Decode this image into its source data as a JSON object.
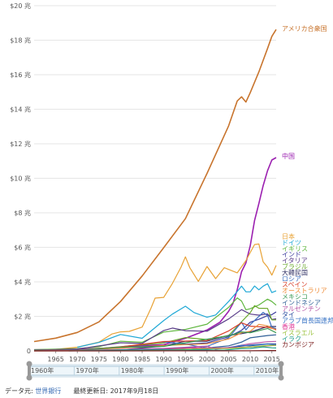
{
  "chart_data": {
    "type": "line",
    "title": "",
    "xlabel": "",
    "ylabel": "",
    "xlim": [
      1960,
      2016
    ],
    "ylim": [
      0,
      20
    ],
    "y_tick_values": [
      0,
      2,
      4,
      6,
      8,
      10,
      12,
      14,
      16,
      18,
      20
    ],
    "y_tick_labels": [
      "0",
      "$2 兆",
      "$4 兆",
      "$6 兆",
      "$8 兆",
      "$10 兆",
      "$12 兆",
      "$14 兆",
      "$16 兆",
      "$18 兆",
      "$20 兆"
    ],
    "x_tick_values": [
      1965,
      1970,
      1975,
      1980,
      1985,
      1990,
      1995,
      2000,
      2005,
      2010,
      2015
    ],
    "x_tick_labels": [
      "1965",
      "1970",
      "1975",
      "1980",
      "1985",
      "1990",
      "1995",
      "2000",
      "2005",
      "2010",
      "2015"
    ],
    "grid": true,
    "series": [
      {
        "name": "アメリカ合衆国",
        "color": "#c8742d",
        "x": [
          1960,
          1965,
          1970,
          1975,
          1980,
          1985,
          1990,
          1995,
          2000,
          2005,
          2007,
          2008,
          2009,
          2010,
          2012,
          2014,
          2015,
          2016
        ],
        "y": [
          0.54,
          0.74,
          1.07,
          1.68,
          2.86,
          4.34,
          5.98,
          7.66,
          10.28,
          13.04,
          14.48,
          14.72,
          14.42,
          14.96,
          16.16,
          17.52,
          18.22,
          18.62
        ]
      },
      {
        "name": "中国",
        "color": "#9b1fb0",
        "x": [
          1960,
          1970,
          1980,
          1985,
          1990,
          1995,
          2000,
          2003,
          2005,
          2006,
          2007,
          2008,
          2009,
          2010,
          2011,
          2012,
          2013,
          2014,
          2015,
          2016
        ],
        "y": [
          0.06,
          0.09,
          0.19,
          0.31,
          0.36,
          0.73,
          1.21,
          1.66,
          2.29,
          2.75,
          3.55,
          4.59,
          5.1,
          6.09,
          7.55,
          8.53,
          9.57,
          10.44,
          11.06,
          11.2
        ]
      },
      {
        "name": "日本",
        "color": "#e8a235",
        "x": [
          1960,
          1965,
          1970,
          1975,
          1978,
          1980,
          1982,
          1985,
          1987,
          1988,
          1990,
          1992,
          1994,
          1995,
          1996,
          1998,
          2000,
          2002,
          2004,
          2007,
          2009,
          2010,
          2011,
          2012,
          2013,
          2014,
          2015,
          2016
        ],
        "y": [
          0.04,
          0.09,
          0.21,
          0.51,
          0.98,
          1.1,
          1.13,
          1.38,
          2.45,
          3.06,
          3.1,
          3.91,
          4.85,
          5.45,
          4.83,
          4.03,
          4.89,
          4.19,
          4.82,
          4.52,
          5.23,
          5.7,
          6.16,
          6.2,
          5.16,
          4.85,
          4.39,
          4.95
        ]
      },
      {
        "name": "ドイツ",
        "color": "#1fa8d6",
        "x": [
          1970,
          1975,
          1980,
          1985,
          1990,
          1992,
          1995,
          1997,
          2000,
          2002,
          2005,
          2007,
          2008,
          2009,
          2010,
          2011,
          2012,
          2013,
          2014,
          2015,
          2016
        ],
        "y": [
          0.21,
          0.49,
          0.95,
          0.73,
          1.76,
          2.13,
          2.59,
          2.22,
          1.95,
          2.08,
          2.86,
          3.44,
          3.75,
          3.42,
          3.42,
          3.76,
          3.54,
          3.75,
          3.89,
          3.38,
          3.48
        ]
      },
      {
        "name": "イギリス",
        "color": "#5fb63e",
        "x": [
          1960,
          1970,
          1975,
          1980,
          1985,
          1990,
          1995,
          2000,
          2005,
          2007,
          2008,
          2009,
          2010,
          2012,
          2014,
          2015,
          2016
        ],
        "y": [
          0.07,
          0.13,
          0.24,
          0.56,
          0.5,
          1.09,
          1.24,
          1.55,
          2.52,
          3.07,
          2.89,
          2.38,
          2.44,
          2.66,
          3.0,
          2.86,
          2.65
        ]
      },
      {
        "name": "インド",
        "color": "#3a3a9c",
        "x": [
          1960,
          1970,
          1980,
          1990,
          2000,
          2005,
          2008,
          2010,
          2012,
          2014,
          2015,
          2016
        ],
        "y": [
          0.04,
          0.06,
          0.19,
          0.32,
          0.46,
          0.82,
          1.19,
          1.66,
          1.83,
          2.04,
          2.1,
          2.26
        ]
      },
      {
        "name": "イタリア",
        "color": "#5a3d8a",
        "x": [
          1960,
          1970,
          1980,
          1985,
          1990,
          1992,
          1995,
          2000,
          2005,
          2008,
          2010,
          2012,
          2014,
          2015,
          2016
        ],
        "y": [
          0.04,
          0.11,
          0.47,
          0.43,
          1.18,
          1.32,
          1.17,
          1.14,
          1.85,
          2.39,
          2.13,
          2.07,
          2.14,
          1.82,
          1.86
        ]
      },
      {
        "name": "ブラジル",
        "color": "#6aa82a",
        "x": [
          1960,
          1970,
          1980,
          1990,
          1995,
          2000,
          2005,
          2008,
          2010,
          2011,
          2012,
          2014,
          2015,
          2016
        ],
        "y": [
          0.02,
          0.04,
          0.24,
          0.46,
          0.77,
          0.66,
          0.89,
          1.69,
          2.21,
          2.62,
          2.47,
          2.46,
          1.8,
          1.8
        ]
      },
      {
        "name": "大韓民国",
        "color": "#333366",
        "x": [
          1960,
          1970,
          1980,
          1990,
          1995,
          2000,
          2005,
          2008,
          2010,
          2014,
          2016
        ],
        "y": [
          0.01,
          0.01,
          0.06,
          0.28,
          0.56,
          0.56,
          0.9,
          1.0,
          1.09,
          1.41,
          1.41
        ]
      },
      {
        "name": "ロシア",
        "color": "#3e6fbf",
        "x": [
          1989,
          1990,
          1995,
          1999,
          2000,
          2005,
          2008,
          2009,
          2010,
          2013,
          2014,
          2015,
          2016
        ],
        "y": [
          0.51,
          0.52,
          0.4,
          0.2,
          0.26,
          0.76,
          1.66,
          1.22,
          1.52,
          2.23,
          2.06,
          1.37,
          1.28
        ]
      },
      {
        "name": "スペイン",
        "color": "#d93f2a",
        "x": [
          1960,
          1970,
          1980,
          1990,
          2000,
          2005,
          2008,
          2010,
          2014,
          2016
        ],
        "y": [
          0.01,
          0.04,
          0.23,
          0.54,
          0.6,
          1.16,
          1.63,
          1.43,
          1.37,
          1.24
        ]
      },
      {
        "name": "オーストラリア",
        "color": "#ef8f3c",
        "x": [
          1960,
          1970,
          1980,
          1990,
          2000,
          2005,
          2008,
          2010,
          2012,
          2014,
          2016
        ],
        "y": [
          0.02,
          0.04,
          0.16,
          0.31,
          0.41,
          0.69,
          1.05,
          1.14,
          1.54,
          1.45,
          1.2
        ]
      },
      {
        "name": "メキシコ",
        "color": "#3a9a55",
        "x": [
          1960,
          1970,
          1980,
          1990,
          2000,
          2005,
          2008,
          2010,
          2014,
          2016
        ],
        "y": [
          0.01,
          0.04,
          0.21,
          0.26,
          0.68,
          0.87,
          1.1,
          1.05,
          1.3,
          1.05
        ]
      },
      {
        "name": "インドネシア",
        "color": "#2e5e96",
        "x": [
          1967,
          1970,
          1980,
          1990,
          1997,
          1998,
          2000,
          2005,
          2008,
          2010,
          2014,
          2016
        ],
        "y": [
          0.01,
          0.01,
          0.07,
          0.11,
          0.22,
          0.1,
          0.17,
          0.29,
          0.51,
          0.76,
          0.89,
          0.93
        ]
      },
      {
        "name": "アルゼンチン",
        "color": "#b85aa8",
        "x": [
          1962,
          1970,
          1980,
          1990,
          2000,
          2002,
          2005,
          2010,
          2014,
          2016
        ],
        "y": [
          0.02,
          0.03,
          0.08,
          0.14,
          0.28,
          0.1,
          0.2,
          0.42,
          0.53,
          0.55
        ]
      },
      {
        "name": "タイ",
        "color": "#2d4fa0",
        "x": [
          1960,
          1970,
          1980,
          1990,
          1996,
          1998,
          2000,
          2005,
          2010,
          2014,
          2016
        ],
        "y": [
          0.003,
          0.007,
          0.03,
          0.09,
          0.18,
          0.11,
          0.13,
          0.19,
          0.34,
          0.41,
          0.41
        ]
      },
      {
        "name": "アラブ首長国連邦",
        "color": "#3672c4",
        "x": [
          1975,
          1980,
          1990,
          2000,
          2005,
          2008,
          2010,
          2014,
          2016
        ],
        "y": [
          0.01,
          0.04,
          0.05,
          0.1,
          0.18,
          0.32,
          0.29,
          0.4,
          0.35
        ]
      },
      {
        "name": "香港",
        "color": "#e0409a",
        "x": [
          1960,
          1970,
          1980,
          1990,
          1997,
          2000,
          2005,
          2010,
          2014,
          2016
        ],
        "y": [
          0.001,
          0.004,
          0.03,
          0.08,
          0.18,
          0.17,
          0.18,
          0.23,
          0.29,
          0.32
        ]
      },
      {
        "name": "イスラエル",
        "color": "#9ac23c",
        "x": [
          1960,
          1970,
          1980,
          1990,
          2000,
          2005,
          2010,
          2014,
          2016
        ],
        "y": [
          0.002,
          0.006,
          0.02,
          0.06,
          0.13,
          0.14,
          0.23,
          0.31,
          0.32
        ]
      },
      {
        "name": "イラク",
        "color": "#1e9e8c",
        "x": [
          1968,
          1970,
          1980,
          1990,
          2004,
          2008,
          2010,
          2013,
          2015,
          2016
        ],
        "y": [
          0.002,
          0.003,
          0.05,
          0.06,
          0.04,
          0.13,
          0.14,
          0.23,
          0.18,
          0.17
        ]
      },
      {
        "name": "カンボジア",
        "color": "#7a1d1d",
        "x": [
          1960,
          1970,
          1993,
          2000,
          2005,
          2010,
          2014,
          2016
        ],
        "y": [
          0.001,
          0.001,
          0.003,
          0.004,
          0.006,
          0.011,
          0.017,
          0.02
        ]
      }
    ]
  },
  "slider": {
    "range": [
      1960,
      2016
    ],
    "tick_labels": [
      "1960年",
      "1970年",
      "1980年",
      "1990年",
      "2000年",
      "2010年"
    ],
    "tick_years": [
      1960,
      1970,
      1980,
      1990,
      2000,
      2010
    ]
  },
  "footer": {
    "source_label": "データ元:",
    "source_link": "世界銀行",
    "updated": "最終更新日: 2017年9月18日"
  }
}
